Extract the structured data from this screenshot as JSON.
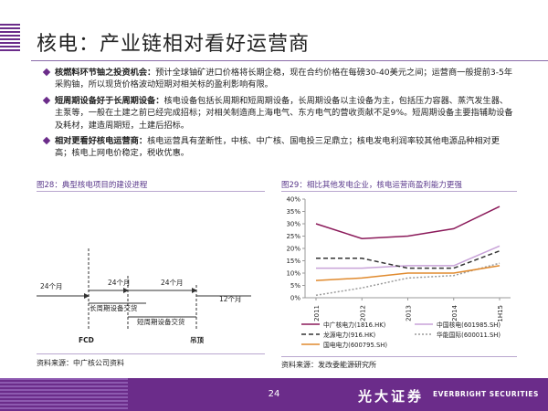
{
  "title": "核电：产业链相对看好运营商",
  "bullets": [
    {
      "lead": "核燃料环节铀之投资机会：",
      "text": "预计全球铀矿进口价格将长期企稳，现在合约价格在每磅30-40美元之间；运营商一般提前3-5年采购铀，所以现货价格波动短期对相关标的盈利影响有限。"
    },
    {
      "lead": "短周期设备好于长周期设备：",
      "text": "核电设备包括长周期和短周期设备，长周期设备以主设备为主，包括压力容器、蒸汽发生器、主泵等，一般在土建之前已经完成招标；对相关制造商上海电气、东方电气的营收贡献不足9%。短周期设备主要指辅助设备及耗材，建造周期短，土建后招标。"
    },
    {
      "lead": "相对更看好核电运营商：",
      "text": "核电运营具有垄断性，中核、中广核、国电投三足鼎立；核电发电利润率较其他电源品种相对更高；核电上网电价稳定，税收优惠。"
    }
  ],
  "fig28": {
    "title": "图28：典型核电项目的建设进程",
    "label_24a": "24个月",
    "label_24b": "24个月",
    "label_24c": "24个月",
    "label_12": "12个月",
    "long_cycle": "长周期设备交货",
    "short_cycle": "短周期设备交货",
    "fcd": "FCD",
    "dome": "吊顶",
    "source": "资料来源：中广核公司资料"
  },
  "fig29": {
    "title": "图29：相比其他发电企业，核电运营商盈利能力更强",
    "source": "资料来源：发改委能源研究所"
  },
  "chart_data": {
    "type": "line",
    "title": "图29：相比其他发电企业，核电运营商盈利能力更强",
    "categories": [
      "2011",
      "2012",
      "2013",
      "2014",
      "1H15"
    ],
    "ylim": [
      0,
      40
    ],
    "yticks": [
      "0%",
      "5%",
      "10%",
      "15%",
      "20%",
      "25%",
      "30%",
      "35%",
      "40%"
    ],
    "grid": false,
    "legend_position": "bottom",
    "series": [
      {
        "name": "中广核电力(1816.HK)",
        "color": "#8b1a5a",
        "dash": "solid",
        "values": [
          30,
          24,
          25,
          28,
          37
        ]
      },
      {
        "name": "中国核电(601985.SH)",
        "color": "#c8a2d8",
        "dash": "solid",
        "values": [
          12,
          12,
          13,
          13,
          21
        ]
      },
      {
        "name": "龙源电力(916.HK)",
        "color": "#333333",
        "dash": "dash",
        "values": [
          16,
          16,
          12,
          12,
          19
        ]
      },
      {
        "name": "华能国际(600011.SH)",
        "color": "#9a9a9a",
        "dash": "dot",
        "values": [
          1,
          4,
          8,
          9,
          14
        ]
      },
      {
        "name": "国电电力(600795.SH)",
        "color": "#e08a2e",
        "dash": "solid",
        "values": [
          7,
          8,
          10,
          10,
          13
        ]
      }
    ]
  },
  "footer": {
    "page": "24",
    "brand_cn": "光大证券",
    "brand_en": "EVERBRIGHT SECURITIES"
  },
  "colors": {
    "accent": "#6b2c8a",
    "footer": "#6b2c8a"
  }
}
